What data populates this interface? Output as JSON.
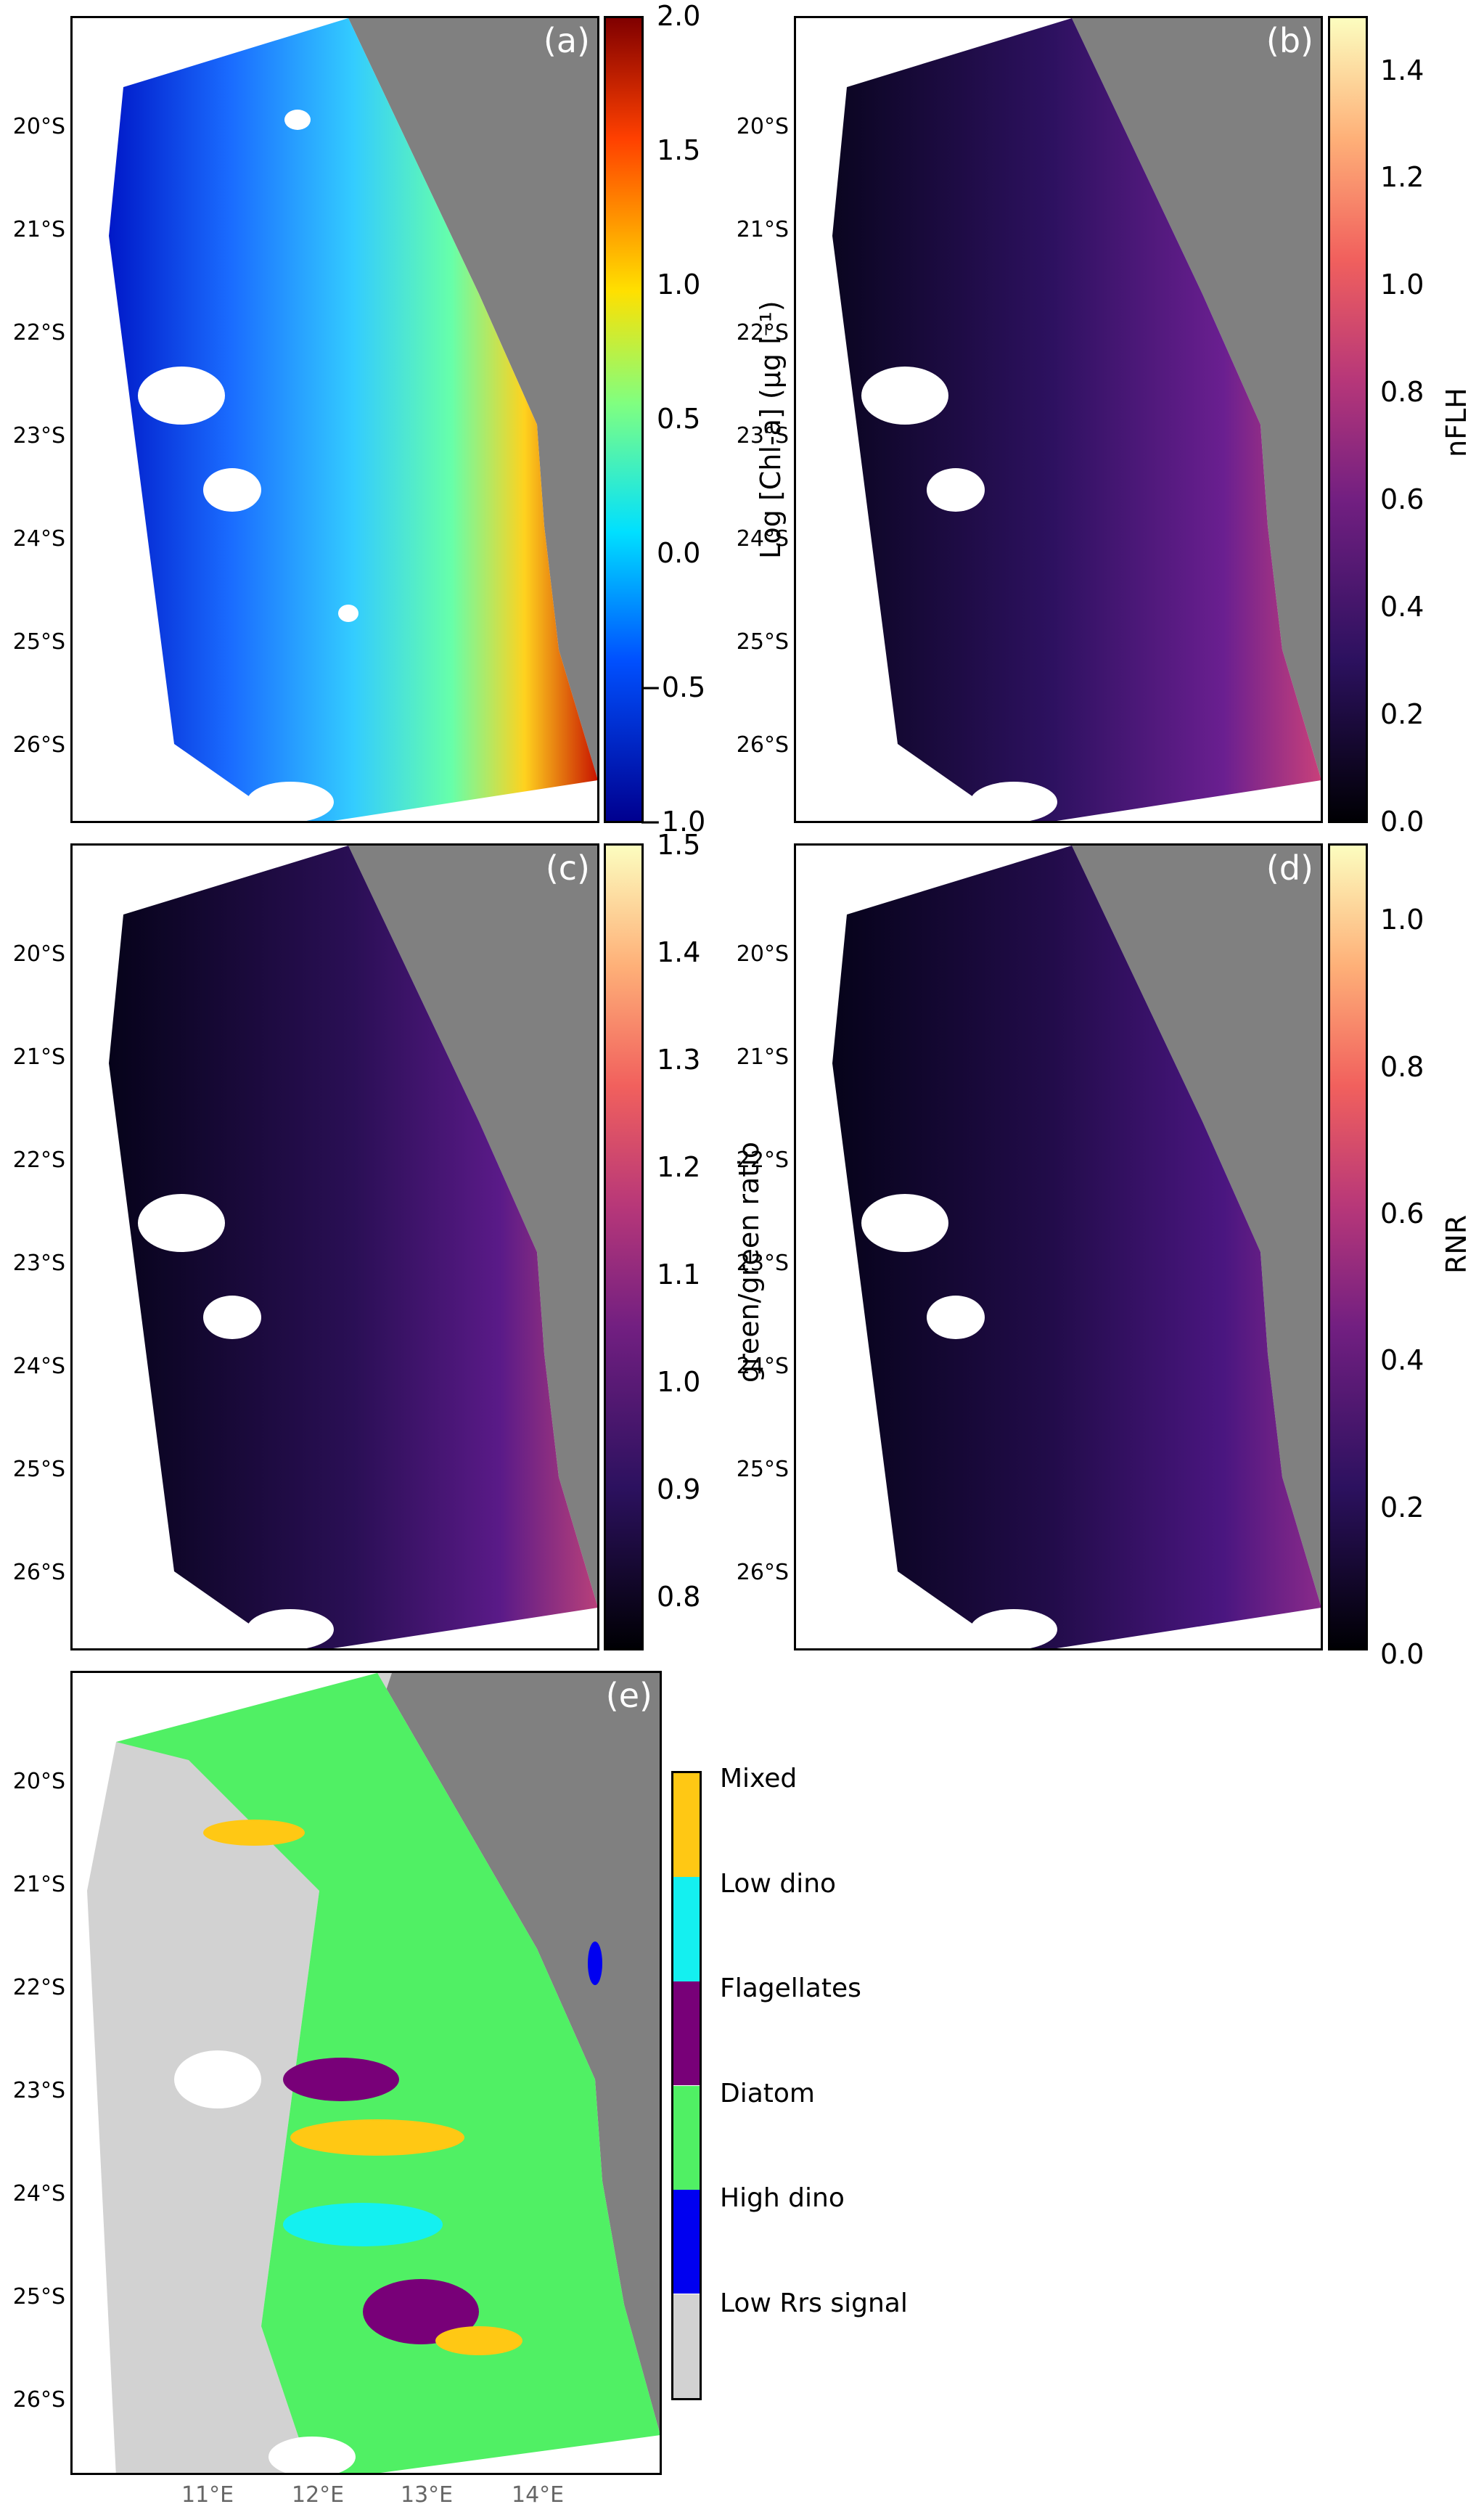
{
  "panels": {
    "a": {
      "label": "(a)"
    },
    "b": {
      "label": "(b)"
    },
    "c": {
      "label": "(c)"
    },
    "d": {
      "label": "(d)"
    },
    "e": {
      "label": "(e)"
    }
  },
  "lat_ticks": [
    "20°S",
    "21°S",
    "22°S",
    "23°S",
    "24°S",
    "25°S",
    "26°S"
  ],
  "lon_ticks": [
    "11°E",
    "12°E",
    "13°E",
    "14°E"
  ],
  "colorbars": {
    "a": {
      "label": "Log [Chl-a] (μg l⁻¹)",
      "ticks": [
        "2.0",
        "1.5",
        "1.0",
        "0.5",
        "0.0",
        "−0.5",
        "−1.0"
      ],
      "range": [
        -1.0,
        2.0
      ],
      "colormap": "jet"
    },
    "b": {
      "label": "nFLH",
      "ticks": [
        "1.4",
        "1.2",
        "1.0",
        "0.8",
        "0.6",
        "0.4",
        "0.2",
        "0.0"
      ],
      "range": [
        0.0,
        1.5
      ],
      "colormap": "magma"
    },
    "c": {
      "label": "green/green ratio",
      "ticks": [
        "1.5",
        "1.4",
        "1.3",
        "1.2",
        "1.1",
        "1.0",
        "0.9",
        "0.8"
      ],
      "range": [
        0.75,
        1.5
      ],
      "colormap": "magma"
    },
    "d": {
      "label": "RNR",
      "ticks": [
        "1.0",
        "0.8",
        "0.6",
        "0.4",
        "0.2",
        "0.0"
      ],
      "range": [
        0.0,
        1.1
      ],
      "colormap": "magma"
    }
  },
  "classes": [
    {
      "name": "Mixed",
      "color": "#ffc814"
    },
    {
      "name": "Low dino",
      "color": "#14f0f0"
    },
    {
      "name": "Flagellates",
      "color": "#780078"
    },
    {
      "name": "Diatom",
      "color": "#50f064"
    },
    {
      "name": "High dino",
      "color": "#0000f0"
    },
    {
      "name": "Low Rrs signal",
      "color": "#d2d2d2"
    }
  ],
  "land_color": "#808080"
}
